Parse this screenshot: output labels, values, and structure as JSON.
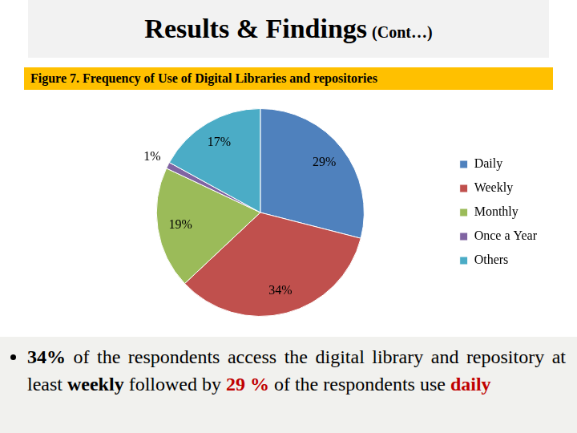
{
  "header": {
    "title": "Results & Findings",
    "subtitle": "(Cont…)"
  },
  "chart_data": {
    "type": "pie",
    "title": "Figure 7. Frequency of Use of Digital Libraries and repositories",
    "categories": [
      "Daily",
      "Weekly",
      "Monthly",
      "Once a Year",
      "Others"
    ],
    "values": [
      29,
      34,
      19,
      1,
      17
    ],
    "value_labels": [
      "29%",
      "34%",
      "19%",
      "1%",
      "17%"
    ],
    "colors": [
      "#4f81bd",
      "#c0504d",
      "#9bbb59",
      "#8064a2",
      "#4bacc6"
    ],
    "data_labels": true,
    "legend": "right"
  },
  "bullet": {
    "segments": [
      {
        "text": "34%",
        "bold": true
      },
      {
        "text": " of the respondents access the digital library and repository at least ",
        "bold": false
      },
      {
        "text": "weekly",
        "bold": true
      },
      {
        "text": " followed by ",
        "bold": false
      },
      {
        "text": "29 %",
        "bold": true,
        "color": "#c00000"
      },
      {
        "text": " of the respondents use ",
        "bold": false
      },
      {
        "text": "daily",
        "bold": true,
        "color": "#c00000"
      }
    ]
  }
}
